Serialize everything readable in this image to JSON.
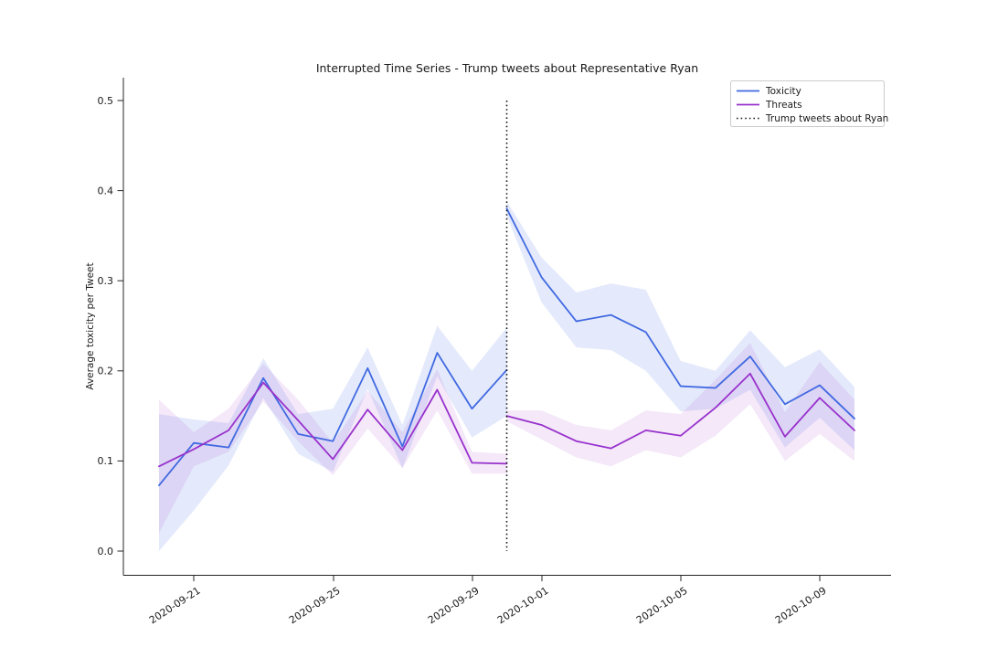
{
  "figure": {
    "title": "Interrupted Time Series - Trump tweets about Representative Ryan",
    "ylabel": "Average toxicity per Tweet",
    "background": "#ffffff"
  },
  "legend": {
    "items": [
      {
        "label": "Toxicity",
        "color": "#4169E1",
        "style": "solid"
      },
      {
        "label": "Threats",
        "color": "#9932CC",
        "style": "solid"
      },
      {
        "label": "Trump tweets about Ryan",
        "color": "#1a1a1a",
        "style": "dotted"
      }
    ]
  },
  "axes": {
    "y_ticks": [
      "0.0",
      "0.1",
      "0.2",
      "0.3",
      "0.4",
      "0.5"
    ],
    "x_ticks": [
      "2020-09-21",
      "2020-09-25",
      "2020-09-29",
      "2020-10-01",
      "2020-10-05",
      "2020-10-09"
    ]
  },
  "chart_data": {
    "type": "line",
    "title": "Interrupted Time Series - Trump tweets about Representative Ryan",
    "xlabel": "",
    "ylabel": "Average toxicity per Tweet",
    "ylim": [
      0.0,
      0.5
    ],
    "grid": false,
    "legend_position": "upper right",
    "x_dates": [
      "2020-09-20",
      "2020-09-21",
      "2020-09-22",
      "2020-09-23",
      "2020-09-24",
      "2020-09-25",
      "2020-09-26",
      "2020-09-27",
      "2020-09-28",
      "2020-09-29",
      "2020-09-30",
      "2020-10-01",
      "2020-10-02",
      "2020-10-03",
      "2020-10-04",
      "2020-10-05",
      "2020-10-06",
      "2020-10-07",
      "2020-10-08",
      "2020-10-09",
      "2020-10-10"
    ],
    "intervention_date": "2020-09-30",
    "intervention_label": "Trump tweets about Ryan",
    "series": [
      {
        "name": "Toxicity pre",
        "legend": "Toxicity",
        "color": "#4169E1",
        "band_color": "rgba(65,105,225,0.14)",
        "dates": [
          "2020-09-20",
          "2020-09-21",
          "2020-09-22",
          "2020-09-23",
          "2020-09-24",
          "2020-09-25",
          "2020-09-26",
          "2020-09-27",
          "2020-09-28",
          "2020-09-29",
          "2020-09-30"
        ],
        "values": [
          0.073,
          0.12,
          0.115,
          0.192,
          0.13,
          0.122,
          0.203,
          0.116,
          0.22,
          0.158,
          0.201
        ],
        "lower": [
          0.0,
          0.045,
          0.095,
          0.17,
          0.108,
          0.088,
          0.18,
          0.092,
          0.194,
          0.126,
          0.15
        ],
        "upper": [
          0.152,
          0.146,
          0.142,
          0.214,
          0.152,
          0.158,
          0.226,
          0.14,
          0.25,
          0.2,
          0.248
        ]
      },
      {
        "name": "Toxicity post",
        "legend": "Toxicity",
        "color": "#4169E1",
        "band_color": "rgba(65,105,225,0.14)",
        "dates": [
          "2020-09-30",
          "2020-10-01",
          "2020-10-02",
          "2020-10-03",
          "2020-10-04",
          "2020-10-05",
          "2020-10-06",
          "2020-10-07",
          "2020-10-08",
          "2020-10-09",
          "2020-10-10"
        ],
        "values": [
          0.38,
          0.304,
          0.255,
          0.262,
          0.243,
          0.183,
          0.181,
          0.216,
          0.163,
          0.184,
          0.147
        ],
        "lower": [
          0.372,
          0.276,
          0.226,
          0.223,
          0.2,
          0.155,
          0.158,
          0.179,
          0.115,
          0.148,
          0.112
        ],
        "upper": [
          0.388,
          0.326,
          0.287,
          0.297,
          0.29,
          0.211,
          0.2,
          0.245,
          0.204,
          0.224,
          0.182
        ]
      },
      {
        "name": "Threats pre",
        "legend": "Threats",
        "color": "#9932CC",
        "band_color": "rgba(153,50,204,0.11)",
        "dates": [
          "2020-09-20",
          "2020-09-21",
          "2020-09-22",
          "2020-09-23",
          "2020-09-24",
          "2020-09-25",
          "2020-09-26",
          "2020-09-27",
          "2020-09-28",
          "2020-09-29",
          "2020-09-30"
        ],
        "values": [
          0.094,
          0.113,
          0.134,
          0.187,
          0.145,
          0.102,
          0.157,
          0.112,
          0.179,
          0.098,
          0.097
        ],
        "lower": [
          0.02,
          0.094,
          0.11,
          0.166,
          0.122,
          0.084,
          0.136,
          0.092,
          0.156,
          0.086,
          0.086
        ],
        "upper": [
          0.168,
          0.132,
          0.158,
          0.208,
          0.168,
          0.12,
          0.178,
          0.132,
          0.202,
          0.11,
          0.108
        ]
      },
      {
        "name": "Threats post",
        "legend": "Threats",
        "color": "#9932CC",
        "band_color": "rgba(153,50,204,0.11)",
        "dates": [
          "2020-09-30",
          "2020-10-01",
          "2020-10-02",
          "2020-10-03",
          "2020-10-04",
          "2020-10-05",
          "2020-10-06",
          "2020-10-07",
          "2020-10-08",
          "2020-10-09",
          "2020-10-10"
        ],
        "values": [
          0.15,
          0.14,
          0.122,
          0.114,
          0.134,
          0.128,
          0.159,
          0.197,
          0.127,
          0.17,
          0.134
        ],
        "lower": [
          0.144,
          0.124,
          0.104,
          0.094,
          0.112,
          0.104,
          0.128,
          0.163,
          0.1,
          0.13,
          0.1
        ],
        "upper": [
          0.156,
          0.156,
          0.14,
          0.134,
          0.156,
          0.152,
          0.19,
          0.231,
          0.154,
          0.21,
          0.168
        ]
      }
    ]
  }
}
